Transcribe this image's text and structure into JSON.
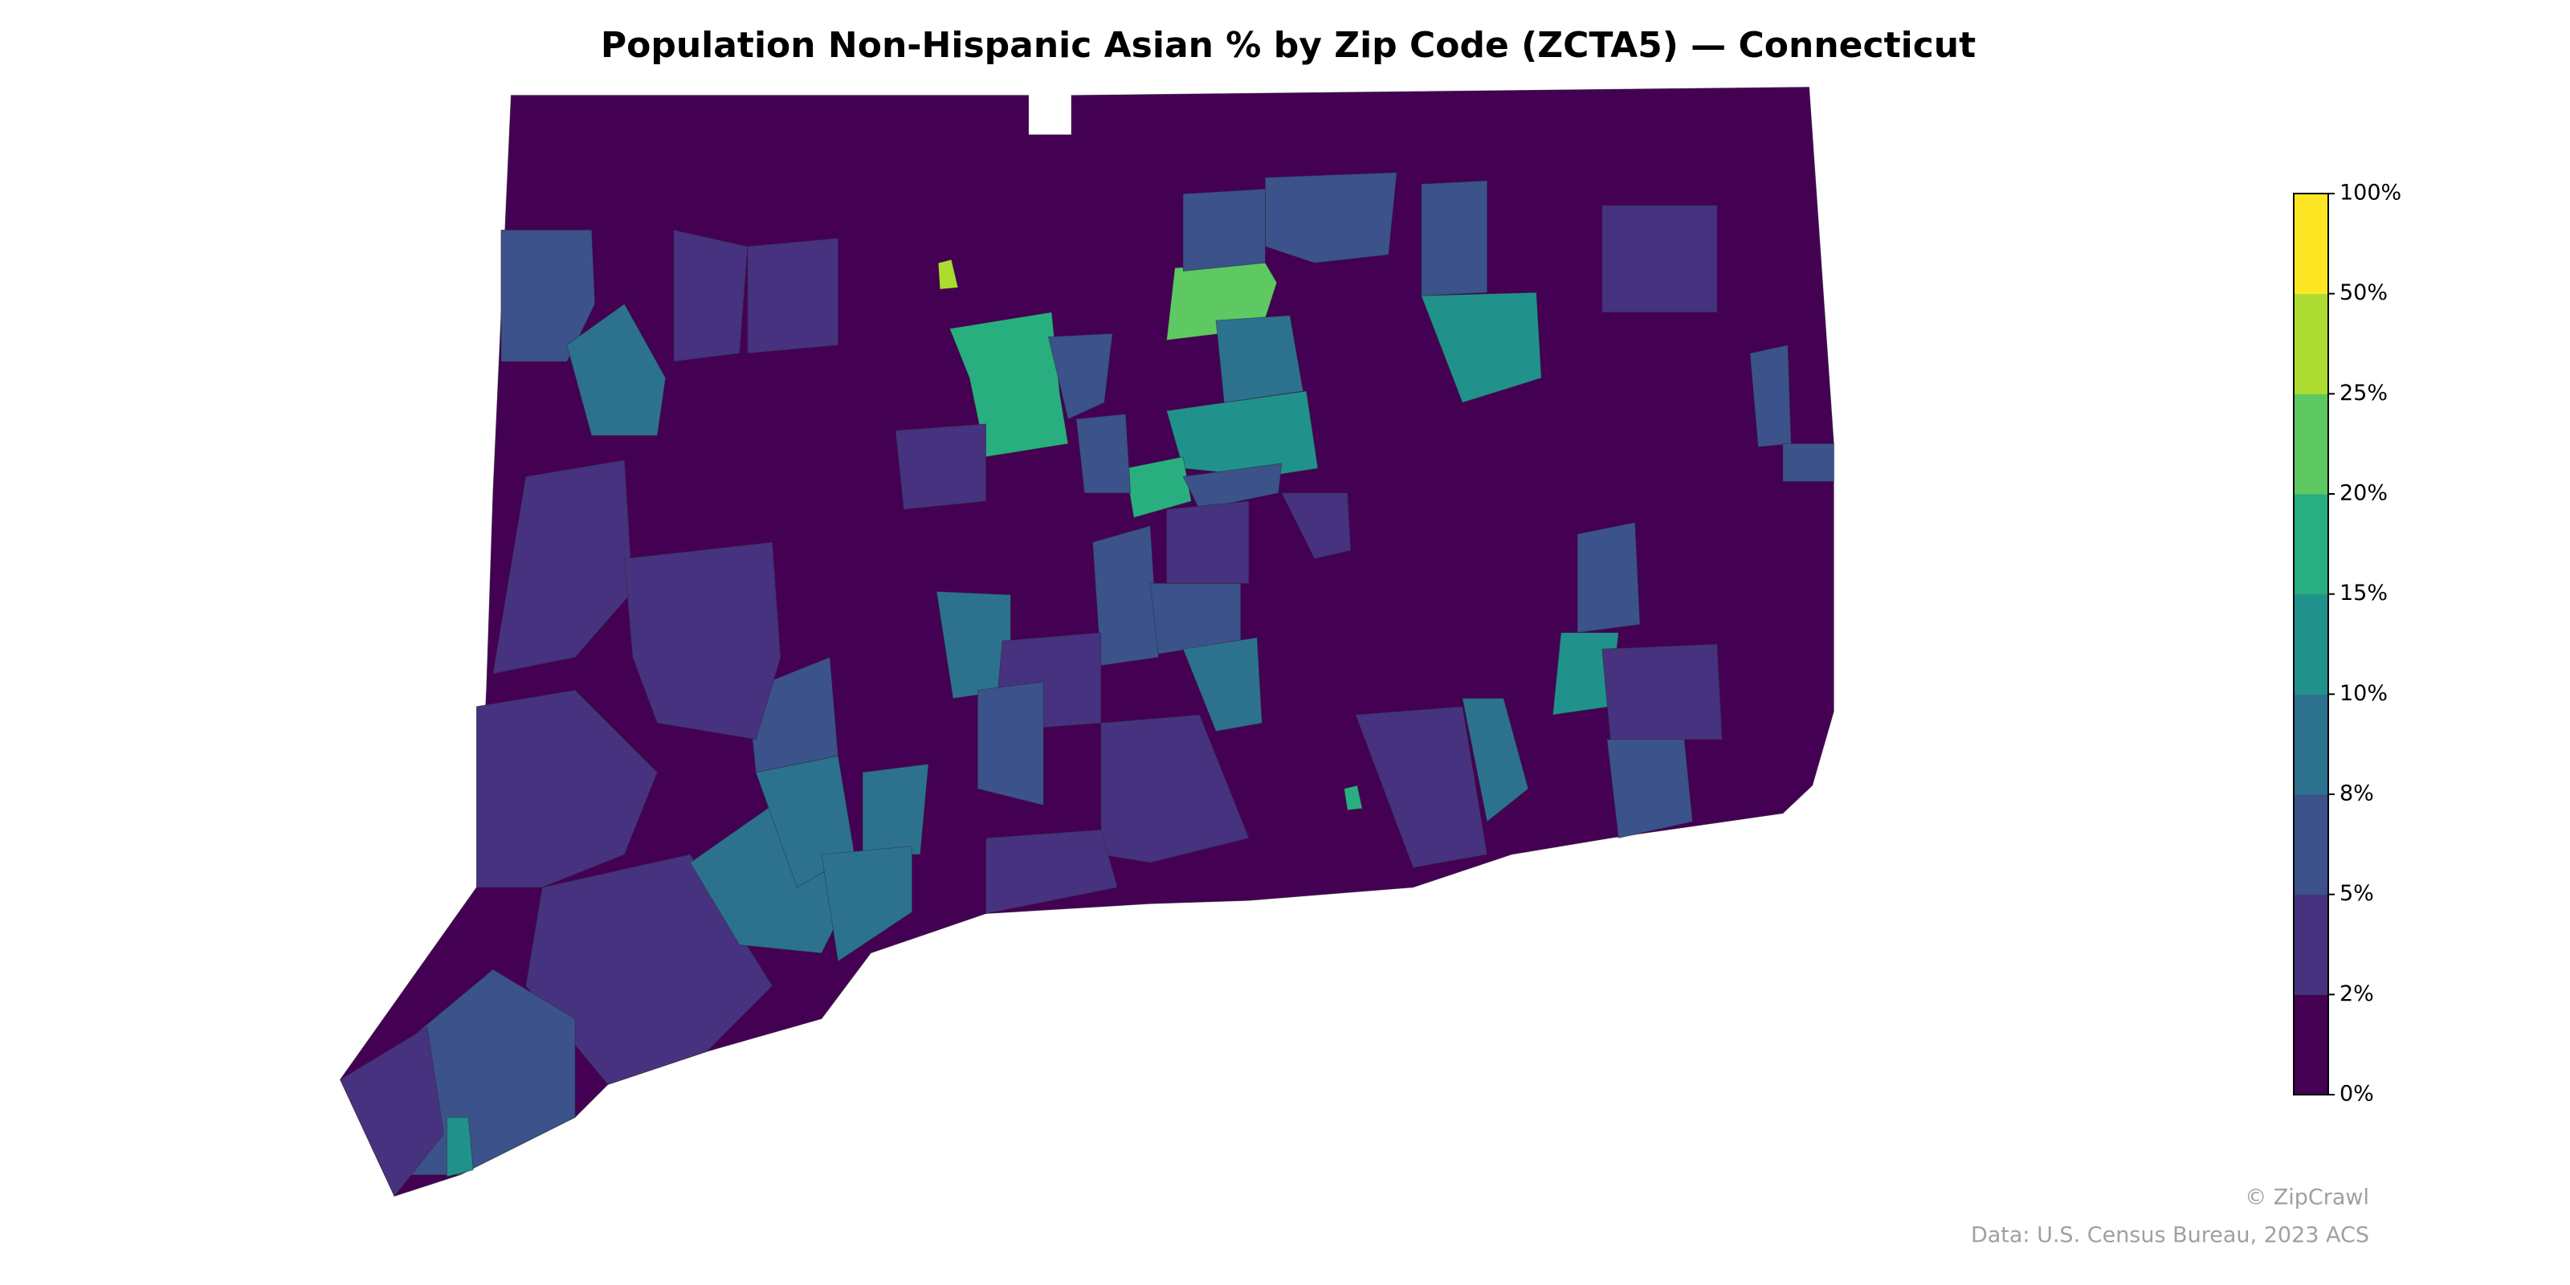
{
  "chart_data": {
    "type": "choropleth",
    "title": "Population Non-Hispanic Asian % by Zip Code (ZCTA5) — Connecticut",
    "colorbar": {
      "ticks": [
        {
          "value": 0,
          "label": "0%"
        },
        {
          "value": 2,
          "label": "2%"
        },
        {
          "value": 5,
          "label": "5%"
        },
        {
          "value": 8,
          "label": "8%"
        },
        {
          "value": 10,
          "label": "10%"
        },
        {
          "value": 15,
          "label": "15%"
        },
        {
          "value": 20,
          "label": "20%"
        },
        {
          "value": 25,
          "label": "25%"
        },
        {
          "value": 50,
          "label": "50%"
        },
        {
          "value": 100,
          "label": "100%"
        }
      ],
      "colors": [
        "#440154",
        "#46327e",
        "#3b528b",
        "#2c728e",
        "#21918c",
        "#28ae80",
        "#5ec962",
        "#addc30",
        "#fde725"
      ]
    },
    "credit": "© ZipCrawl",
    "source": "Data: U.S. Census Bureau, 2023 ACS"
  }
}
